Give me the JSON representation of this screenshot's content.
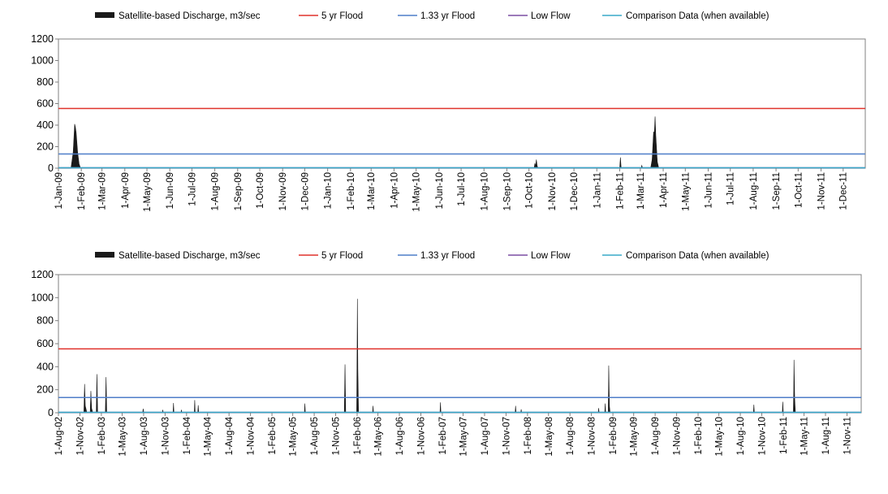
{
  "legend_labels": {
    "discharge": "Satellite-based Discharge, m3/sec",
    "flood5": "5 yr Flood",
    "flood133": "1.33 yr Flood",
    "lowflow": "Low Flow",
    "comparison": "Comparison Data (when available)"
  },
  "colors": {
    "discharge": "#1a1a1a",
    "flood5": "#e0322b",
    "flood133": "#4f7ec9",
    "lowflow": "#7b4fa3",
    "comparison": "#38aac8",
    "axis": "#808080"
  },
  "chart_data": [
    {
      "type": "area",
      "x_ticks": [
        "1-Jan-09",
        "1-Feb-09",
        "1-Mar-09",
        "1-Apr-09",
        "1-May-09",
        "1-Jun-09",
        "1-Jul-09",
        "1-Aug-09",
        "1-Sep-09",
        "1-Oct-09",
        "1-Nov-09",
        "1-Dec-09",
        "1-Jan-10",
        "1-Feb-10",
        "1-Mar-10",
        "1-Apr-10",
        "1-May-10",
        "1-Jun-10",
        "1-Jul-10",
        "1-Aug-10",
        "1-Sep-10",
        "1-Oct-10",
        "1-Nov-10",
        "1-Dec-10",
        "1-Jan-11",
        "1-Feb-11",
        "1-Mar-11",
        "1-Apr-11",
        "1-May-11",
        "1-Jun-11",
        "1-Jul-11",
        "1-Aug-11",
        "1-Sep-11",
        "1-Oct-11",
        "1-Nov-11",
        "1-Dec-11"
      ],
      "x_range": [
        "2009-01-01",
        "2011-12-31"
      ],
      "ylim": [
        0,
        1200
      ],
      "y_ticks": [
        0,
        200,
        400,
        600,
        800,
        1000,
        1200
      ],
      "legend_position": "top",
      "grid": false,
      "series": [
        {
          "key": "discharge",
          "kind": "area",
          "points": [
            [
              "2009-01-01",
              0
            ],
            [
              "2009-01-18",
              0
            ],
            [
              "2009-01-21",
              150
            ],
            [
              "2009-01-23",
              410
            ],
            [
              "2009-01-24",
              380
            ],
            [
              "2009-01-25",
              330
            ],
            [
              "2009-01-27",
              150
            ],
            [
              "2009-01-29",
              40
            ],
            [
              "2009-01-31",
              0
            ],
            [
              "2010-10-08",
              0
            ],
            [
              "2010-10-09",
              45
            ],
            [
              "2010-10-10",
              20
            ],
            [
              "2010-10-11",
              80
            ],
            [
              "2010-10-12",
              25
            ],
            [
              "2010-10-13",
              0
            ],
            [
              "2011-02-01",
              0
            ],
            [
              "2011-02-02",
              100
            ],
            [
              "2011-02-03",
              0
            ],
            [
              "2011-03-02",
              0
            ],
            [
              "2011-03-03",
              25
            ],
            [
              "2011-03-04",
              0
            ],
            [
              "2011-03-15",
              0
            ],
            [
              "2011-03-17",
              80
            ],
            [
              "2011-03-19",
              340
            ],
            [
              "2011-03-20",
              320
            ],
            [
              "2011-03-21",
              480
            ],
            [
              "2011-03-22",
              300
            ],
            [
              "2011-03-24",
              60
            ],
            [
              "2011-03-26",
              0
            ],
            [
              "2011-12-31",
              0
            ]
          ]
        },
        {
          "key": "flood5",
          "kind": "hline",
          "value": 555
        },
        {
          "key": "flood133",
          "kind": "hline",
          "value": 132
        },
        {
          "key": "lowflow",
          "kind": "hline",
          "value": 2
        },
        {
          "key": "comparison",
          "kind": "hline",
          "value": 0
        }
      ]
    },
    {
      "type": "area",
      "x_ticks": [
        "1-Aug-02",
        "1-Nov-02",
        "1-Feb-03",
        "1-May-03",
        "1-Aug-03",
        "1-Nov-03",
        "1-Feb-04",
        "1-May-04",
        "1-Aug-04",
        "1-Nov-04",
        "1-Feb-05",
        "1-May-05",
        "1-Aug-05",
        "1-Nov-05",
        "1-Feb-06",
        "1-May-06",
        "1-Aug-06",
        "1-Nov-06",
        "1-Feb-07",
        "1-May-07",
        "1-Aug-07",
        "1-Nov-07",
        "1-Feb-08",
        "1-May-08",
        "1-Aug-08",
        "1-Nov-08",
        "1-Feb-09",
        "1-May-09",
        "1-Aug-09",
        "1-Nov-09",
        "1-Feb-10",
        "1-May-10",
        "1-Aug-10",
        "1-Nov-10",
        "1-Feb-11",
        "1-May-11",
        "1-Aug-11",
        "1-Nov-11"
      ],
      "x_range": [
        "2002-08-01",
        "2012-01-01"
      ],
      "ylim": [
        0,
        1200
      ],
      "y_ticks": [
        0,
        200,
        400,
        600,
        800,
        1000,
        1200
      ],
      "legend_position": "top",
      "grid": false,
      "series": [
        {
          "key": "discharge",
          "kind": "area",
          "points": [
            [
              "2002-08-01",
              0
            ],
            [
              "2002-11-18",
              0
            ],
            [
              "2002-11-21",
              250
            ],
            [
              "2002-11-24",
              60
            ],
            [
              "2002-12-01",
              0
            ],
            [
              "2002-12-15",
              0
            ],
            [
              "2002-12-18",
              190
            ],
            [
              "2002-12-21",
              40
            ],
            [
              "2002-12-26",
              0
            ],
            [
              "2003-01-10",
              0
            ],
            [
              "2003-01-13",
              335
            ],
            [
              "2003-01-16",
              0
            ],
            [
              "2003-02-18",
              0
            ],
            [
              "2003-02-21",
              310
            ],
            [
              "2003-02-24",
              0
            ],
            [
              "2003-07-28",
              0
            ],
            [
              "2003-07-30",
              35
            ],
            [
              "2003-08-02",
              0
            ],
            [
              "2003-10-20",
              0
            ],
            [
              "2003-10-22",
              25
            ],
            [
              "2003-10-24",
              0
            ],
            [
              "2003-12-05",
              0
            ],
            [
              "2003-12-07",
              85
            ],
            [
              "2003-12-09",
              0
            ],
            [
              "2004-01-08",
              0
            ],
            [
              "2004-01-10",
              25
            ],
            [
              "2004-01-12",
              0
            ],
            [
              "2004-03-05",
              0
            ],
            [
              "2004-03-07",
              110
            ],
            [
              "2004-03-09",
              0
            ],
            [
              "2004-03-20",
              0
            ],
            [
              "2004-03-22",
              65
            ],
            [
              "2004-03-24",
              0
            ],
            [
              "2005-06-20",
              0
            ],
            [
              "2005-06-22",
              80
            ],
            [
              "2005-06-24",
              0
            ],
            [
              "2005-12-08",
              0
            ],
            [
              "2005-12-11",
              420
            ],
            [
              "2005-12-14",
              0
            ],
            [
              "2006-01-30",
              0
            ],
            [
              "2006-02-01",
              600
            ],
            [
              "2006-02-02",
              990
            ],
            [
              "2006-02-04",
              380
            ],
            [
              "2006-02-07",
              0
            ],
            [
              "2006-04-08",
              0
            ],
            [
              "2006-04-10",
              60
            ],
            [
              "2006-04-12",
              0
            ],
            [
              "2007-01-22",
              0
            ],
            [
              "2007-01-24",
              90
            ],
            [
              "2007-01-26",
              0
            ],
            [
              "2007-12-10",
              0
            ],
            [
              "2007-12-12",
              60
            ],
            [
              "2007-12-14",
              0
            ],
            [
              "2008-01-03",
              0
            ],
            [
              "2008-01-05",
              30
            ],
            [
              "2008-01-07",
              0
            ],
            [
              "2008-11-30",
              0
            ],
            [
              "2008-12-02",
              40
            ],
            [
              "2008-12-04",
              0
            ],
            [
              "2008-12-28",
              0
            ],
            [
              "2008-12-30",
              80
            ],
            [
              "2009-01-01",
              0
            ],
            [
              "2009-01-12",
              0
            ],
            [
              "2009-01-14",
              410
            ],
            [
              "2009-01-17",
              60
            ],
            [
              "2009-01-20",
              0
            ],
            [
              "2010-09-26",
              0
            ],
            [
              "2010-09-28",
              70
            ],
            [
              "2010-09-30",
              0
            ],
            [
              "2011-01-28",
              0
            ],
            [
              "2011-01-30",
              95
            ],
            [
              "2011-02-01",
              0
            ],
            [
              "2011-03-16",
              0
            ],
            [
              "2011-03-18",
              200
            ],
            [
              "2011-03-19",
              460
            ],
            [
              "2011-03-22",
              120
            ],
            [
              "2011-03-25",
              0
            ],
            [
              "2012-01-01",
              0
            ]
          ]
        },
        {
          "key": "flood5",
          "kind": "hline",
          "value": 555
        },
        {
          "key": "flood133",
          "kind": "hline",
          "value": 132
        },
        {
          "key": "lowflow",
          "kind": "hline",
          "value": 2
        },
        {
          "key": "comparison",
          "kind": "hline",
          "value": 0
        }
      ]
    }
  ]
}
